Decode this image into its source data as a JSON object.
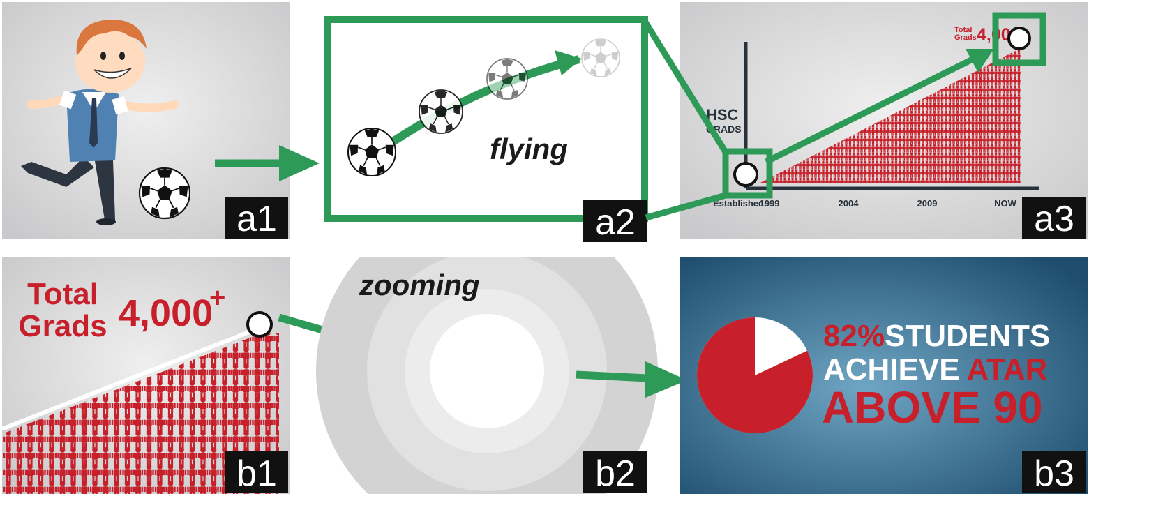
{
  "panels": {
    "a1": {
      "tag": "a1"
    },
    "a2": {
      "tag": "a2",
      "caption": "flying"
    },
    "a3": {
      "tag": "a3",
      "axis_title_line1": "HSC",
      "axis_title_line2": "GRADS",
      "total_label_line1": "Total",
      "total_label_line2": "Grads",
      "total_value": "4,000+",
      "established_label": "Established",
      "ticks": [
        "1999",
        "2004",
        "2009",
        "NOW"
      ]
    },
    "b1": {
      "tag": "b1",
      "total_label_line1": "Total",
      "total_label_line2": "Grads",
      "total_value": "4,000",
      "plus": "+"
    },
    "b2": {
      "tag": "b2",
      "caption": "zooming"
    },
    "b3": {
      "tag": "b3",
      "line1_highlight": "82%",
      "line1_rest": "STUDENTS",
      "line2_white": "ACHIEVE",
      "line2_red": "ATAR",
      "line3": "ABOVE 90",
      "pie_fraction_shown": 0.82
    }
  },
  "colors": {
    "arrow_green": "#2e9a57",
    "highlight_red": "#c8202a",
    "tag_bg": "#111111",
    "b3_bg": "#2f6a8e"
  }
}
